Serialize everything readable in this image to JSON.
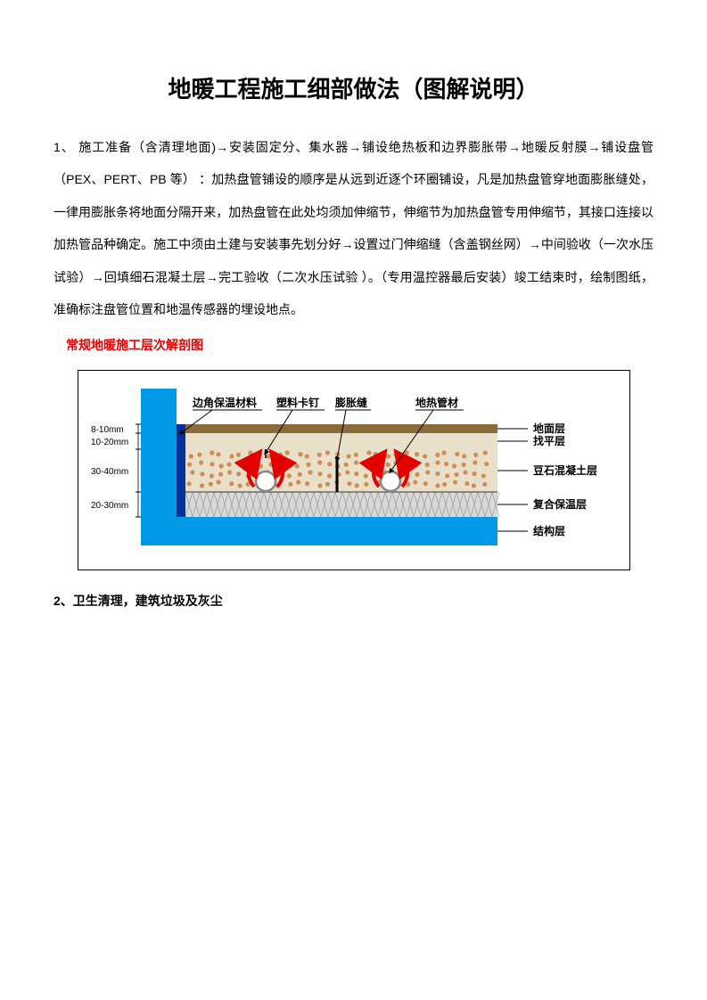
{
  "title": "地暖工程施工细部做法（图解说明）",
  "paragraph1": "1、 施工准备（含清理地面)→安装固定分、集水器→铺设绝热板和边界膨胀带→地暖反射膜→铺设盘管（PEX、PERT、PB 等） ：加热盘管铺设的顺序是从远到近逐个环圈铺设，凡是加热盘管穿地面膨胀缝处，一律用膨胀条将地面分隔开来，加热盘管在此处均须加伸缩节，伸缩节为加热盘管专用伸缩节，其接口连接以加热管品种确定。施工中须由土建与安装事先划分好→设置过门伸缩缝（含盖钢丝网）→中间验收（一次水压试验）→回填细石混凝土层→完工验收（二次水压试验 ）。（专用温控器最后安装）竣工结束时，绘制图纸，准确标注盘管位置和地温传感器的埋设地点。",
  "sectionHeading": "常规地暖施工层次解剖图",
  "subHeading": "2、卫生清理，建筑垃圾及灰尘",
  "diagram": {
    "type": "infographic",
    "background_color": "#ffffff",
    "border_color": "#000000",
    "wall_color": "#0099e5",
    "edge_insulation_color": "#003399",
    "floor_surface_color": "#8b6b3a",
    "screed_color": "#e8e0c8",
    "pebble_color": "#c46a2a",
    "concrete_color": "#a8a8a8",
    "insulation_color": "#d9d9d9",
    "structural_color": "#0099e5",
    "pipe_fill": "#ffffff",
    "pipe_stroke": "#888888",
    "arrow_color": "#e30000",
    "label_color": "#000000",
    "line_color": "#000000",
    "dimensions": {
      "d1": "8-10mm",
      "d2": "10-20mm",
      "d3": "30-40mm",
      "d4": "20-30mm"
    },
    "top_labels": {
      "l1": "边角保温材料",
      "l2": "塑料卡钉",
      "l3": "膨胀缝",
      "l4": "地热管材"
    },
    "right_labels": {
      "r1": "地面层",
      "r2": "找平层",
      "r3": "豆石混凝土层",
      "r4": "复合保温层",
      "r5": "结构层"
    }
  }
}
